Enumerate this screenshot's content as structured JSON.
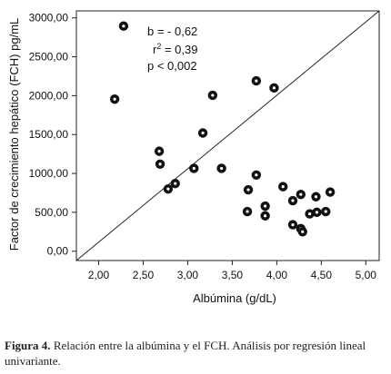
{
  "chart_data": {
    "type": "scatter",
    "xlabel": "Albúmina (g/dL)",
    "ylabel": "Factor de crecimiento hepático (FCH) pg/mL",
    "xlim": [
      1.75,
      5.15
    ],
    "ylim": [
      -120,
      3090
    ],
    "x_ticks": [
      2.0,
      2.5,
      3.0,
      3.5,
      4.0,
      4.5,
      5.0
    ],
    "x_tick_labels": [
      "2,00",
      "2,50",
      "3,00",
      "3,50",
      "4,00",
      "4,50",
      "5,00"
    ],
    "y_ticks": [
      0,
      500,
      1000,
      1500,
      2000,
      2500,
      3000
    ],
    "y_tick_labels": [
      "0,00",
      "500,00",
      "1000,00",
      "1500,00",
      "2000,00",
      "2500,00",
      "3000,00"
    ],
    "grid": false,
    "reference_line": [
      [
        1.75,
        -120
      ],
      [
        5.15,
        3090
      ]
    ],
    "marker_color": "#111111",
    "annotations": [
      "b = - 0,62",
      "r",
      "2",
      " = 0,39",
      "p < 0,002"
    ],
    "points": [
      {
        "x": 2.28,
        "y": 2895
      },
      {
        "x": 2.18,
        "y": 1955
      },
      {
        "x": 2.68,
        "y": 1285
      },
      {
        "x": 2.69,
        "y": 1120
      },
      {
        "x": 2.78,
        "y": 800
      },
      {
        "x": 2.86,
        "y": 870
      },
      {
        "x": 3.07,
        "y": 1065
      },
      {
        "x": 3.17,
        "y": 1520
      },
      {
        "x": 3.28,
        "y": 2005
      },
      {
        "x": 3.38,
        "y": 1065
      },
      {
        "x": 3.77,
        "y": 2190
      },
      {
        "x": 3.97,
        "y": 2100
      },
      {
        "x": 3.77,
        "y": 980
      },
      {
        "x": 3.68,
        "y": 790
      },
      {
        "x": 3.67,
        "y": 510
      },
      {
        "x": 3.87,
        "y": 580
      },
      {
        "x": 3.87,
        "y": 455
      },
      {
        "x": 4.07,
        "y": 830
      },
      {
        "x": 4.18,
        "y": 650
      },
      {
        "x": 4.27,
        "y": 730
      },
      {
        "x": 4.18,
        "y": 340
      },
      {
        "x": 4.27,
        "y": 290
      },
      {
        "x": 4.29,
        "y": 250
      },
      {
        "x": 4.37,
        "y": 480
      },
      {
        "x": 4.44,
        "y": 700
      },
      {
        "x": 4.45,
        "y": 500
      },
      {
        "x": 4.55,
        "y": 510
      },
      {
        "x": 4.6,
        "y": 760
      }
    ]
  },
  "caption": {
    "label": "Figura 4.",
    "text": " Relación entre la albúmina y el FCH. Análisis por regresión lineal univariante."
  }
}
